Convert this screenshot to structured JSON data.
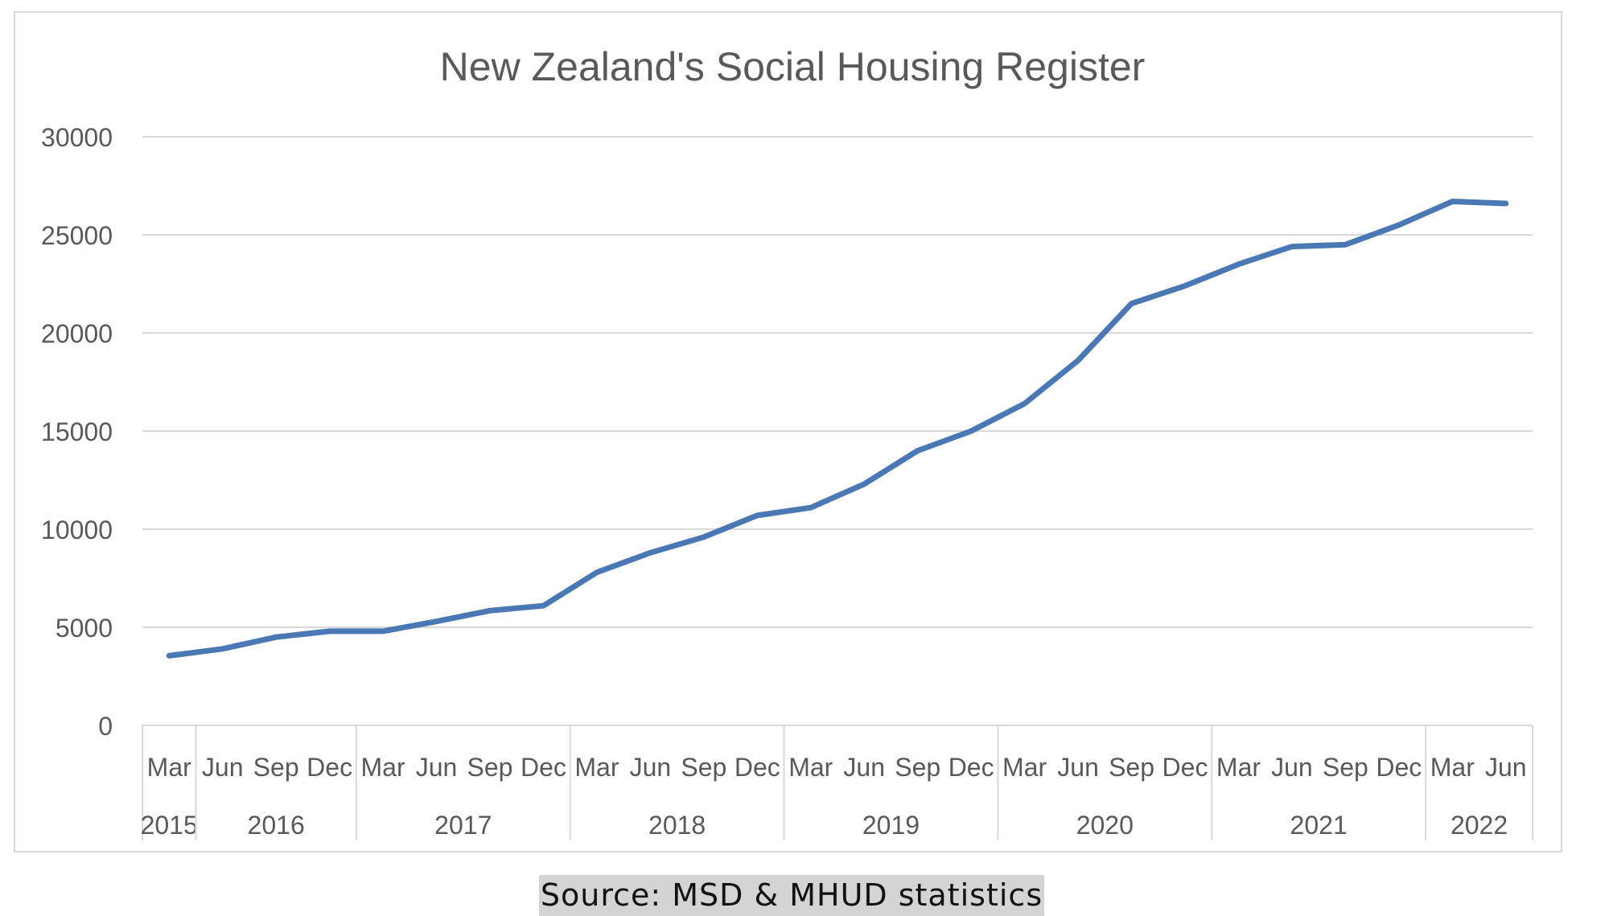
{
  "chart_data": {
    "type": "line",
    "title": "New Zealand's Social Housing Register",
    "xlabel": "",
    "ylabel": "",
    "ylim": [
      0,
      30000
    ],
    "yticks": [
      "0",
      "5000",
      "10000",
      "15000",
      "20000",
      "25000",
      "30000"
    ],
    "grid": true,
    "legend": "none",
    "line_color": "#4a78b5",
    "categories": [
      "Mar",
      "Jun",
      "Sep",
      "Dec",
      "Mar",
      "Jun",
      "Sep",
      "Dec",
      "Mar",
      "Jun",
      "Sep",
      "Dec",
      "Mar",
      "Jun",
      "Sep",
      "Dec",
      "Mar",
      "Jun",
      "Sep",
      "Dec",
      "Mar",
      "Jun",
      "Sep",
      "Dec",
      "Mar",
      "Jun"
    ],
    "year_groups": [
      {
        "label": "2015",
        "count": 1
      },
      {
        "label": "2016",
        "count": 3
      },
      {
        "label": "2017",
        "count": 4
      },
      {
        "label": "2018",
        "count": 4
      },
      {
        "label": "2019",
        "count": 4
      },
      {
        "label": "2020",
        "count": 4
      },
      {
        "label": "2021",
        "count": 4
      },
      {
        "label": "2022",
        "count": 2
      }
    ],
    "series": [
      {
        "name": "Social Housing Register",
        "values": [
          3550,
          3900,
          4500,
          4800,
          4800,
          5300,
          5850,
          6100,
          7800,
          8800,
          9600,
          10700,
          11100,
          12300,
          14000,
          15000,
          16400,
          18600,
          21500,
          22400,
          23500,
          24400,
          24500,
          25500,
          26700,
          26600
        ]
      }
    ]
  },
  "caption": {
    "source": "Source: MSD & MHUD statistics"
  }
}
